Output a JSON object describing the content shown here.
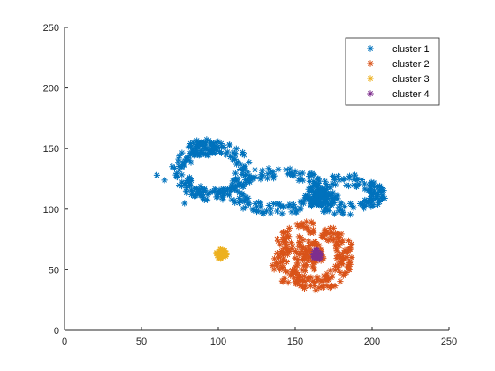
{
  "chart_data": {
    "type": "scatter",
    "marker": "asterisk",
    "xlim": [
      0,
      250
    ],
    "ylim": [
      0,
      250
    ],
    "xticks": [
      "0",
      "50",
      "100",
      "150",
      "200",
      "250"
    ],
    "yticks": [
      "0",
      "50",
      "100",
      "150",
      "200",
      "250"
    ],
    "grid": false,
    "legend_position": "top-right",
    "series": [
      {
        "name": "cluster 1",
        "color": "#0072BD",
        "components": [
          {
            "kind": "ring",
            "cx": 96,
            "cy": 132,
            "rx": 20,
            "ry": 20,
            "thickness": 5,
            "n": 160
          },
          {
            "kind": "ring",
            "cx": 140,
            "cy": 115,
            "rx": 30,
            "ry": 15,
            "thickness": 5,
            "n": 170
          },
          {
            "kind": "ring",
            "cx": 182,
            "cy": 112,
            "rx": 22,
            "ry": 12,
            "thickness": 5,
            "n": 150
          },
          {
            "kind": "blob",
            "cx": 90,
            "cy": 150,
            "rx": 10,
            "ry": 8,
            "n": 40
          },
          {
            "kind": "blob",
            "cx": 170,
            "cy": 110,
            "rx": 8,
            "ry": 7,
            "n": 35
          }
        ],
        "points": [
          [
            65,
            124
          ],
          [
            70,
            135
          ],
          [
            60,
            128
          ],
          [
            78,
            105
          ],
          [
            125,
            98
          ],
          [
            195,
            103
          ]
        ]
      },
      {
        "name": "cluster 2",
        "color": "#D95319",
        "components": [
          {
            "kind": "ring",
            "cx": 161,
            "cy": 61,
            "rx": 22,
            "ry": 23,
            "thickness": 6,
            "n": 200
          },
          {
            "kind": "blob",
            "cx": 157,
            "cy": 62,
            "rx": 12,
            "ry": 13,
            "n": 70
          }
        ],
        "points": [
          [
            140,
            50
          ],
          [
            150,
            40
          ],
          [
            180,
            60
          ],
          [
            175,
            75
          ],
          [
            145,
            78
          ]
        ]
      },
      {
        "name": "cluster 3",
        "color": "#EDB120",
        "components": [
          {
            "kind": "blob",
            "cx": 102,
            "cy": 63,
            "rx": 3.5,
            "ry": 4,
            "n": 45
          }
        ],
        "points": []
      },
      {
        "name": "cluster 4",
        "color": "#7E2F8E",
        "components": [
          {
            "kind": "blob",
            "cx": 164,
            "cy": 62,
            "rx": 2.5,
            "ry": 5,
            "n": 30
          }
        ],
        "points": []
      }
    ]
  }
}
